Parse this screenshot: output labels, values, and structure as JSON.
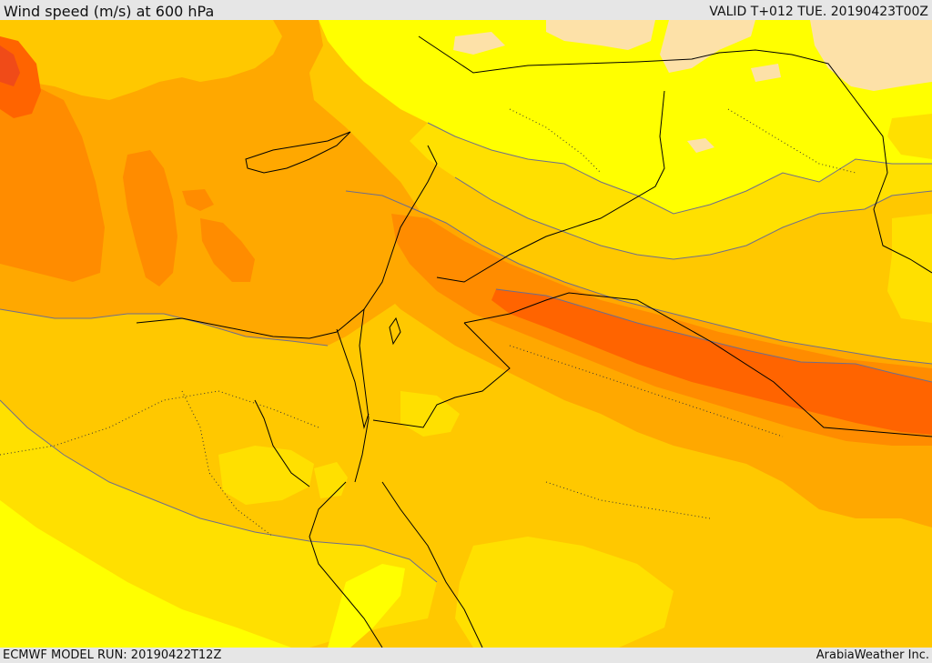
{
  "header": {
    "title": "Wind speed (m/s) at 600 hPa",
    "valid": "VALID T+012 TUE. 20190423T00Z"
  },
  "footer": {
    "model_run": "ECMWF MODEL RUN: 20190422T12Z",
    "credit": "ArabiaWeather Inc."
  },
  "colors": {
    "very_light": "#fde1a8",
    "light_yellow": "#ffff00",
    "yellow": "#ffe000",
    "gold": "#ffc800",
    "light_orange": "#ffa800",
    "orange": "#ff8c00",
    "dark_orange": "#ff6400",
    "red_orange": "#f04b18",
    "border": "#000000",
    "contour": "#6e6e8c"
  }
}
